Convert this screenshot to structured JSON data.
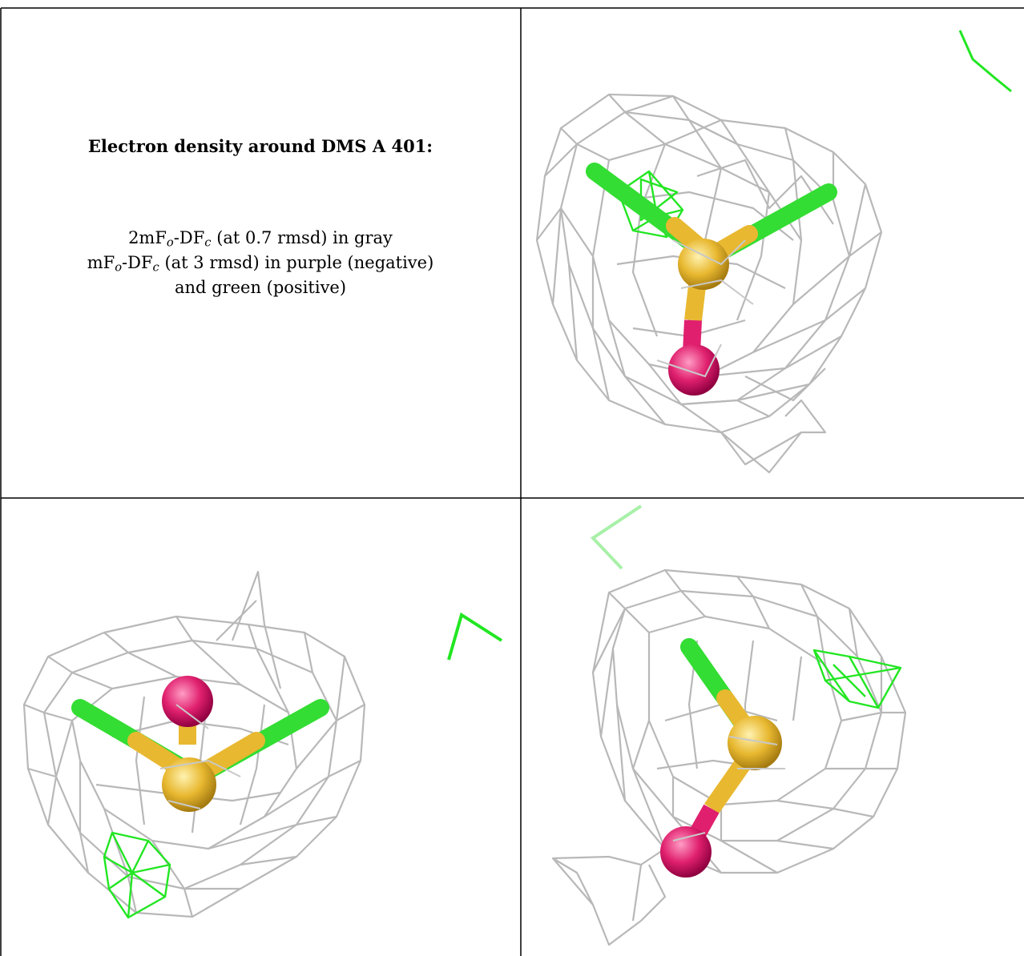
{
  "panel": {
    "title": "Electron density around DMS A 401:",
    "legend": {
      "line1": {
        "a": "2mF",
        "a_sub": "o",
        "b": "-DF",
        "b_sub": "c",
        "c": " (at 0.7 rmsd) in gray"
      },
      "line2": {
        "a": "mF",
        "a_sub": "o",
        "b": "-DF",
        "b_sub": "c",
        "c": " (at 3 rmsd) in purple (negative)"
      },
      "line3": "and green (positive)"
    }
  },
  "colors": {
    "mesh_gray": "#b8b8b8",
    "difference_positive": "#22e622",
    "sulfur": "#e8b830",
    "oxygen": "#e0206e",
    "carbon": "#33dd33",
    "border": "#000000"
  },
  "views": [
    {
      "name": "view-top-right",
      "description_icon": "molecule-mesh-icon"
    },
    {
      "name": "view-bottom-left",
      "description_icon": "molecule-mesh-icon"
    },
    {
      "name": "view-bottom-right",
      "description_icon": "molecule-mesh-icon"
    }
  ]
}
